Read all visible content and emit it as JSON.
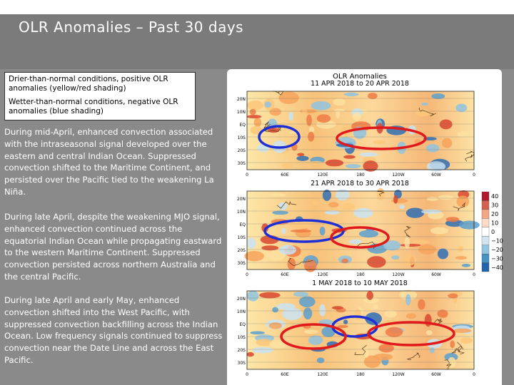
{
  "slide": {
    "title": "OLR Anomalies – Past 30 days",
    "legend": {
      "positive": "Drier-than-normal conditions, positive OLR anomalies (yellow/red shading)",
      "negative": "Wetter-than-normal conditions, negative OLR anomalies (blue shading)"
    },
    "paragraphs": [
      "During mid-April, enhanced convection associated with the intraseasonal signal developed over the eastern and central Indian Ocean. Suppressed convection shifted to the Maritime Continent, and persisted over the Pacific tied to the weakening La Niña.",
      "During late April, despite the weakening MJO signal, enhanced convection continued across the equatorial Indian Ocean while propagating eastward to the western Maritime Continent. Suppressed convection persisted across northern Australia and the central Pacific.",
      "During late April and early May, enhanced convection shifted into the West Pacific, with suppressed convection backfilling across the Indian Ocean. Low frequency signals continued to suppress convection near the Date Line and across the East Pacific."
    ]
  },
  "figure": {
    "title": "OLR Anomalies",
    "panels": [
      {
        "period": "11 APR 2018 to 20 APR 2018"
      },
      {
        "period": "21 APR 2018 to 30 APR 2018"
      },
      {
        "period": "1 MAY 2018 to 10 MAY 2018"
      }
    ],
    "lat_labels": [
      "20N",
      "10N",
      "EQ",
      "10S",
      "20S",
      "30S"
    ],
    "lon_labels_top": [
      "0",
      "60E",
      "120E",
      "180",
      "120W",
      "60W",
      "0"
    ],
    "lon_labels": [
      "0",
      "60E",
      "120E",
      "180",
      "120W",
      "60W",
      "0"
    ],
    "colorbar_labels": [
      "40",
      "30",
      "20",
      "10",
      "0",
      "−10",
      "−20",
      "−30",
      "−40"
    ],
    "colorbar_colors": [
      "#b2182b",
      "#d6604d",
      "#f4a582",
      "#fddbc7",
      "#ffffff",
      "#d1e5f0",
      "#92c5de",
      "#4393c3",
      "#2166ac"
    ],
    "circle_colors": {
      "negative": "#1e2fd6",
      "positive": "#e0191c"
    }
  }
}
